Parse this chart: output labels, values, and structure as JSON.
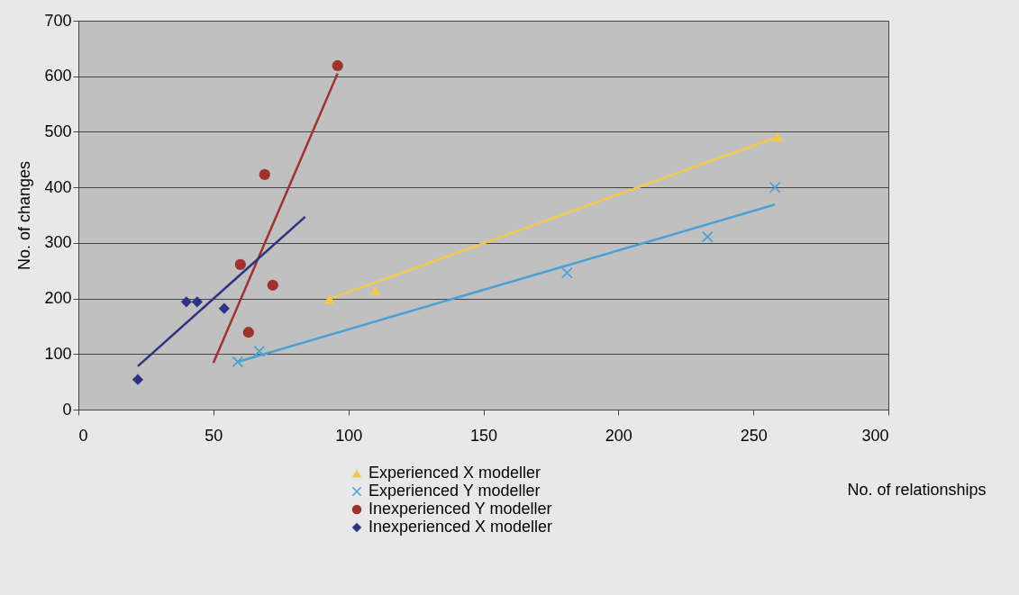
{
  "chart_data": {
    "type": "scatter",
    "xlabel": "No. of relationships",
    "ylabel": "No. of changes",
    "xlim": [
      0,
      300
    ],
    "xticks": [
      0,
      50,
      100,
      150,
      200,
      250,
      300
    ],
    "ylim": [
      0,
      700
    ],
    "yticks": [
      0,
      100,
      200,
      300,
      400,
      500,
      600,
      700
    ],
    "grid": "y",
    "legend": "bottom",
    "series": [
      {
        "name": "Experienced X modeller",
        "marker": "triangle",
        "color": "#f0c850",
        "x": [
          93,
          110,
          259
        ],
        "values": [
          199,
          214,
          491
        ]
      },
      {
        "name": "Experienced Y modeller",
        "marker": "cross",
        "color": "#4a9fd5",
        "x": [
          59,
          67,
          181,
          233,
          258
        ],
        "values": [
          86,
          105,
          246,
          311,
          400
        ]
      },
      {
        "name": "Inexperienced Y modeller",
        "marker": "circle",
        "color": "#a0322d",
        "x": [
          60,
          63,
          69,
          72,
          96
        ],
        "values": [
          261,
          139,
          423,
          224,
          619
        ]
      },
      {
        "name": "Inexperienced X modeller",
        "marker": "diamond",
        "color": "#2e3484",
        "x": [
          22,
          40,
          44,
          54
        ],
        "values": [
          54,
          194,
          194,
          182
        ]
      },
      {
        "type": "line",
        "color": "#f0c850",
        "x": [
          93,
          259
        ],
        "values": [
          199,
          491
        ]
      },
      {
        "type": "line",
        "color": "#4a9fd5",
        "x": [
          59,
          258
        ],
        "values": [
          86,
          369
        ]
      },
      {
        "type": "line",
        "color": "#a0322d",
        "x": [
          50,
          96
        ],
        "values": [
          84,
          605
        ]
      },
      {
        "type": "line",
        "color": "#2e3484",
        "x": [
          22,
          84
        ],
        "values": [
          78,
          347
        ]
      }
    ]
  }
}
